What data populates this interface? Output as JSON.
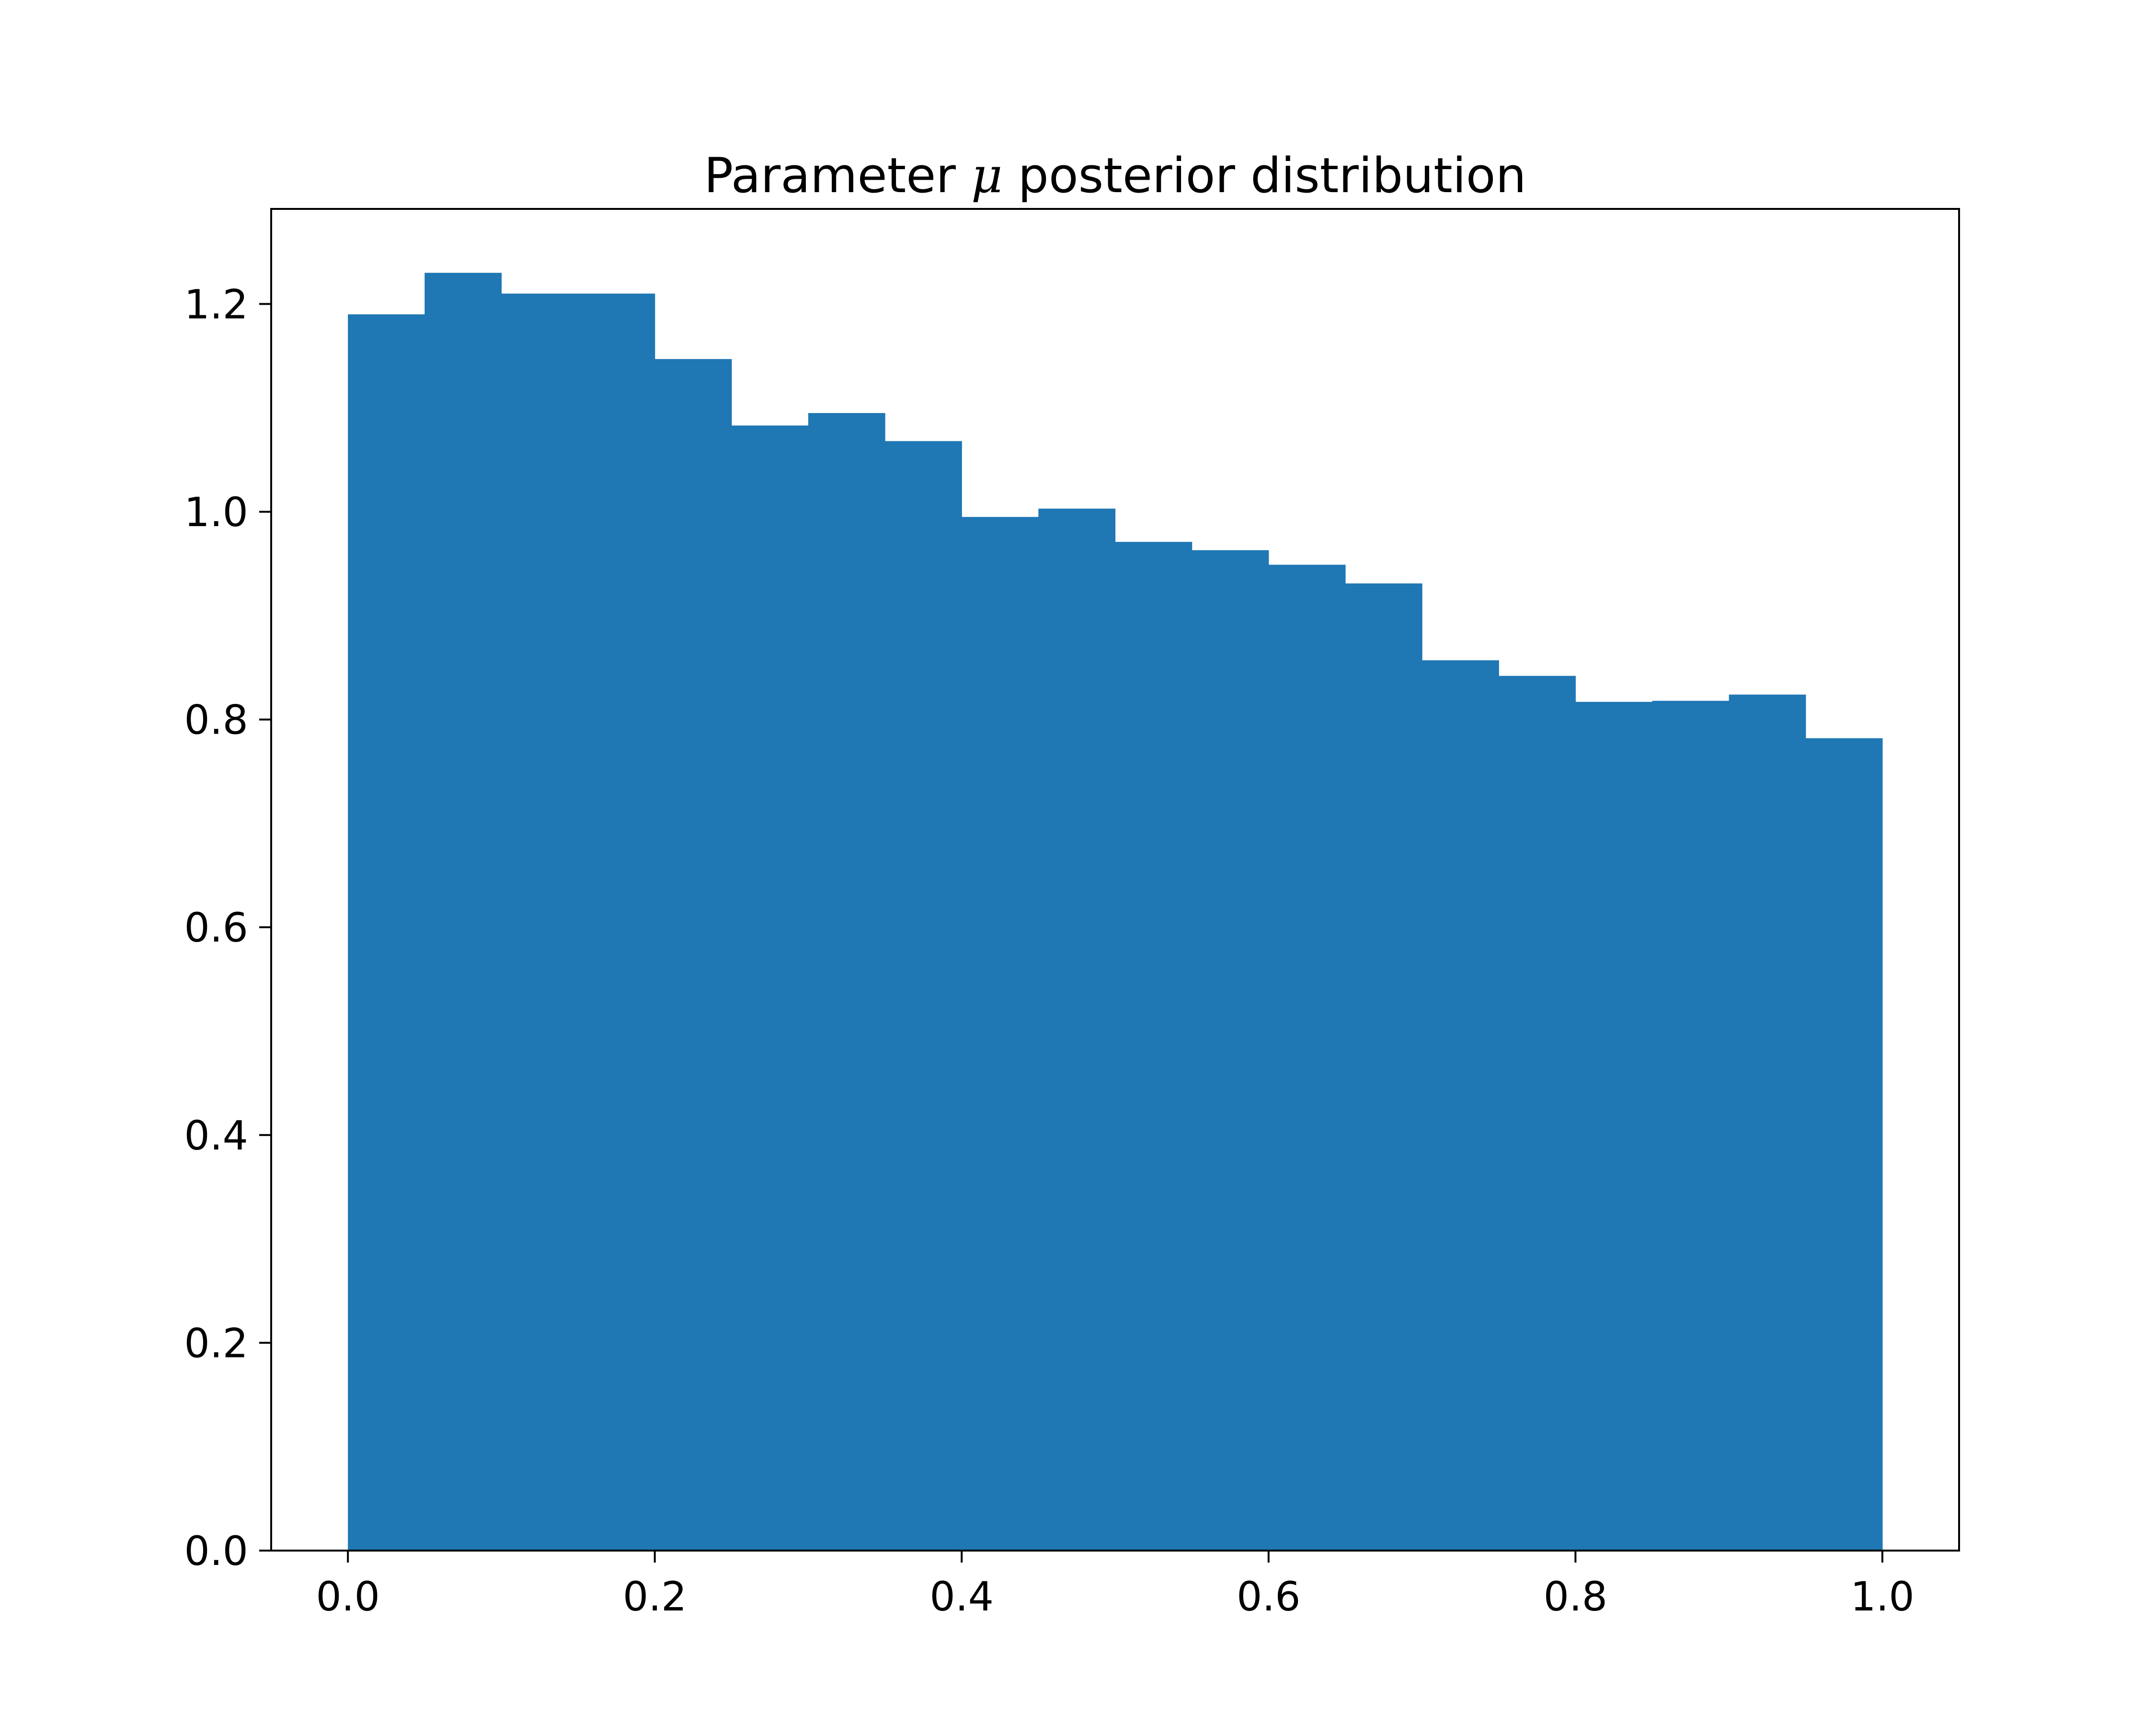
{
  "chart_data": {
    "type": "bar",
    "title": {
      "prefix": "Parameter ",
      "symbol": "μ",
      "suffix": " posterior distribution"
    },
    "xlabel": "",
    "ylabel": "",
    "bin_edges": [
      0.0,
      0.05,
      0.1,
      0.15,
      0.2,
      0.25,
      0.3,
      0.35,
      0.4,
      0.45,
      0.5,
      0.55,
      0.6,
      0.65,
      0.7,
      0.75,
      0.8,
      0.85,
      0.9,
      0.95,
      1.0
    ],
    "values": [
      1.19,
      1.23,
      1.21,
      1.21,
      1.147,
      1.083,
      1.095,
      1.068,
      0.995,
      1.003,
      0.971,
      0.963,
      0.949,
      0.931,
      0.857,
      0.842,
      0.817,
      0.818,
      0.824,
      0.782
    ],
    "xlim": [
      -0.05,
      1.05
    ],
    "ylim": [
      0,
      1.2915
    ],
    "xticks": [
      0.0,
      0.2,
      0.4,
      0.6,
      0.8,
      1.0
    ],
    "xtick_labels": [
      "0.0",
      "0.2",
      "0.4",
      "0.6",
      "0.8",
      "1.0"
    ],
    "yticks": [
      0.0,
      0.2,
      0.4,
      0.6,
      0.8,
      1.0,
      1.2
    ],
    "ytick_labels": [
      "0.0",
      "0.2",
      "0.4",
      "0.6",
      "0.8",
      "1.0",
      "1.2"
    ],
    "grid": false,
    "legend": "none",
    "colors": {
      "bar": "#1f77b4",
      "axes": "#000000",
      "background": "#ffffff"
    }
  }
}
